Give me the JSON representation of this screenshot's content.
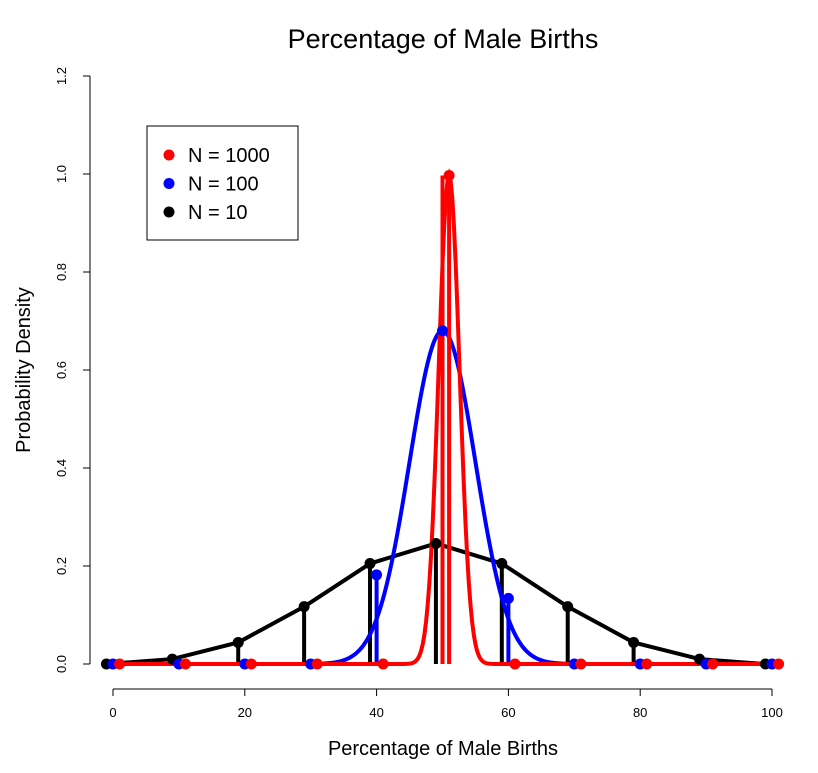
{
  "chart_data": {
    "type": "line",
    "title": "Percentage of Male Births",
    "xlabel": "Percentage of Male Births",
    "ylabel": "Probability Density",
    "xlim": [
      -1,
      101
    ],
    "ylim": [
      0,
      1.2
    ],
    "x_ticks": [
      "0",
      "20",
      "40",
      "60",
      "80",
      "100"
    ],
    "y_ticks": [
      "0.0",
      "0.2",
      "0.4",
      "0.6",
      "0.8",
      "1.0",
      "1.2"
    ],
    "grid": false,
    "legend_position": "top-left",
    "series": [
      {
        "name": "N = 1000",
        "color": "#ff0000",
        "curve": {
          "mean": 51,
          "sd": 1.58
        },
        "sticks": [
          [
            1,
            0
          ],
          [
            11,
            0
          ],
          [
            21,
            0
          ],
          [
            31,
            0
          ],
          [
            41,
            0
          ],
          [
            51,
            0.997
          ],
          [
            61,
            0
          ],
          [
            71,
            0
          ],
          [
            81,
            0
          ],
          [
            91,
            0
          ],
          [
            101,
            0
          ]
        ]
      },
      {
        "name": "N = 100",
        "color": "#0000ff",
        "curve": {
          "mean": 50,
          "sd": 5.0
        },
        "sticks": [
          [
            0,
            0
          ],
          [
            10,
            0
          ],
          [
            20,
            0
          ],
          [
            30,
            0
          ],
          [
            40,
            0.182
          ],
          [
            50,
            0.68
          ],
          [
            60,
            0.134
          ],
          [
            70,
            0
          ],
          [
            80,
            0
          ],
          [
            90,
            0
          ],
          [
            100,
            0
          ]
        ]
      },
      {
        "name": "N = 10",
        "color": "#000000",
        "line": [
          [
            -1,
            0
          ],
          [
            9,
            0.01
          ],
          [
            19,
            0.044
          ],
          [
            29,
            0.117
          ],
          [
            39,
            0.205
          ],
          [
            49,
            0.246
          ],
          [
            59,
            0.205
          ],
          [
            69,
            0.117
          ],
          [
            79,
            0.044
          ],
          [
            89,
            0.01
          ],
          [
            99,
            0
          ]
        ],
        "sticks": [
          [
            -1,
            0
          ],
          [
            9,
            0.01
          ],
          [
            19,
            0.044
          ],
          [
            29,
            0.117
          ],
          [
            39,
            0.205
          ],
          [
            49,
            0.246
          ],
          [
            59,
            0.205
          ],
          [
            69,
            0.117
          ],
          [
            79,
            0.044
          ],
          [
            89,
            0.01
          ],
          [
            99,
            0
          ]
        ]
      }
    ]
  }
}
